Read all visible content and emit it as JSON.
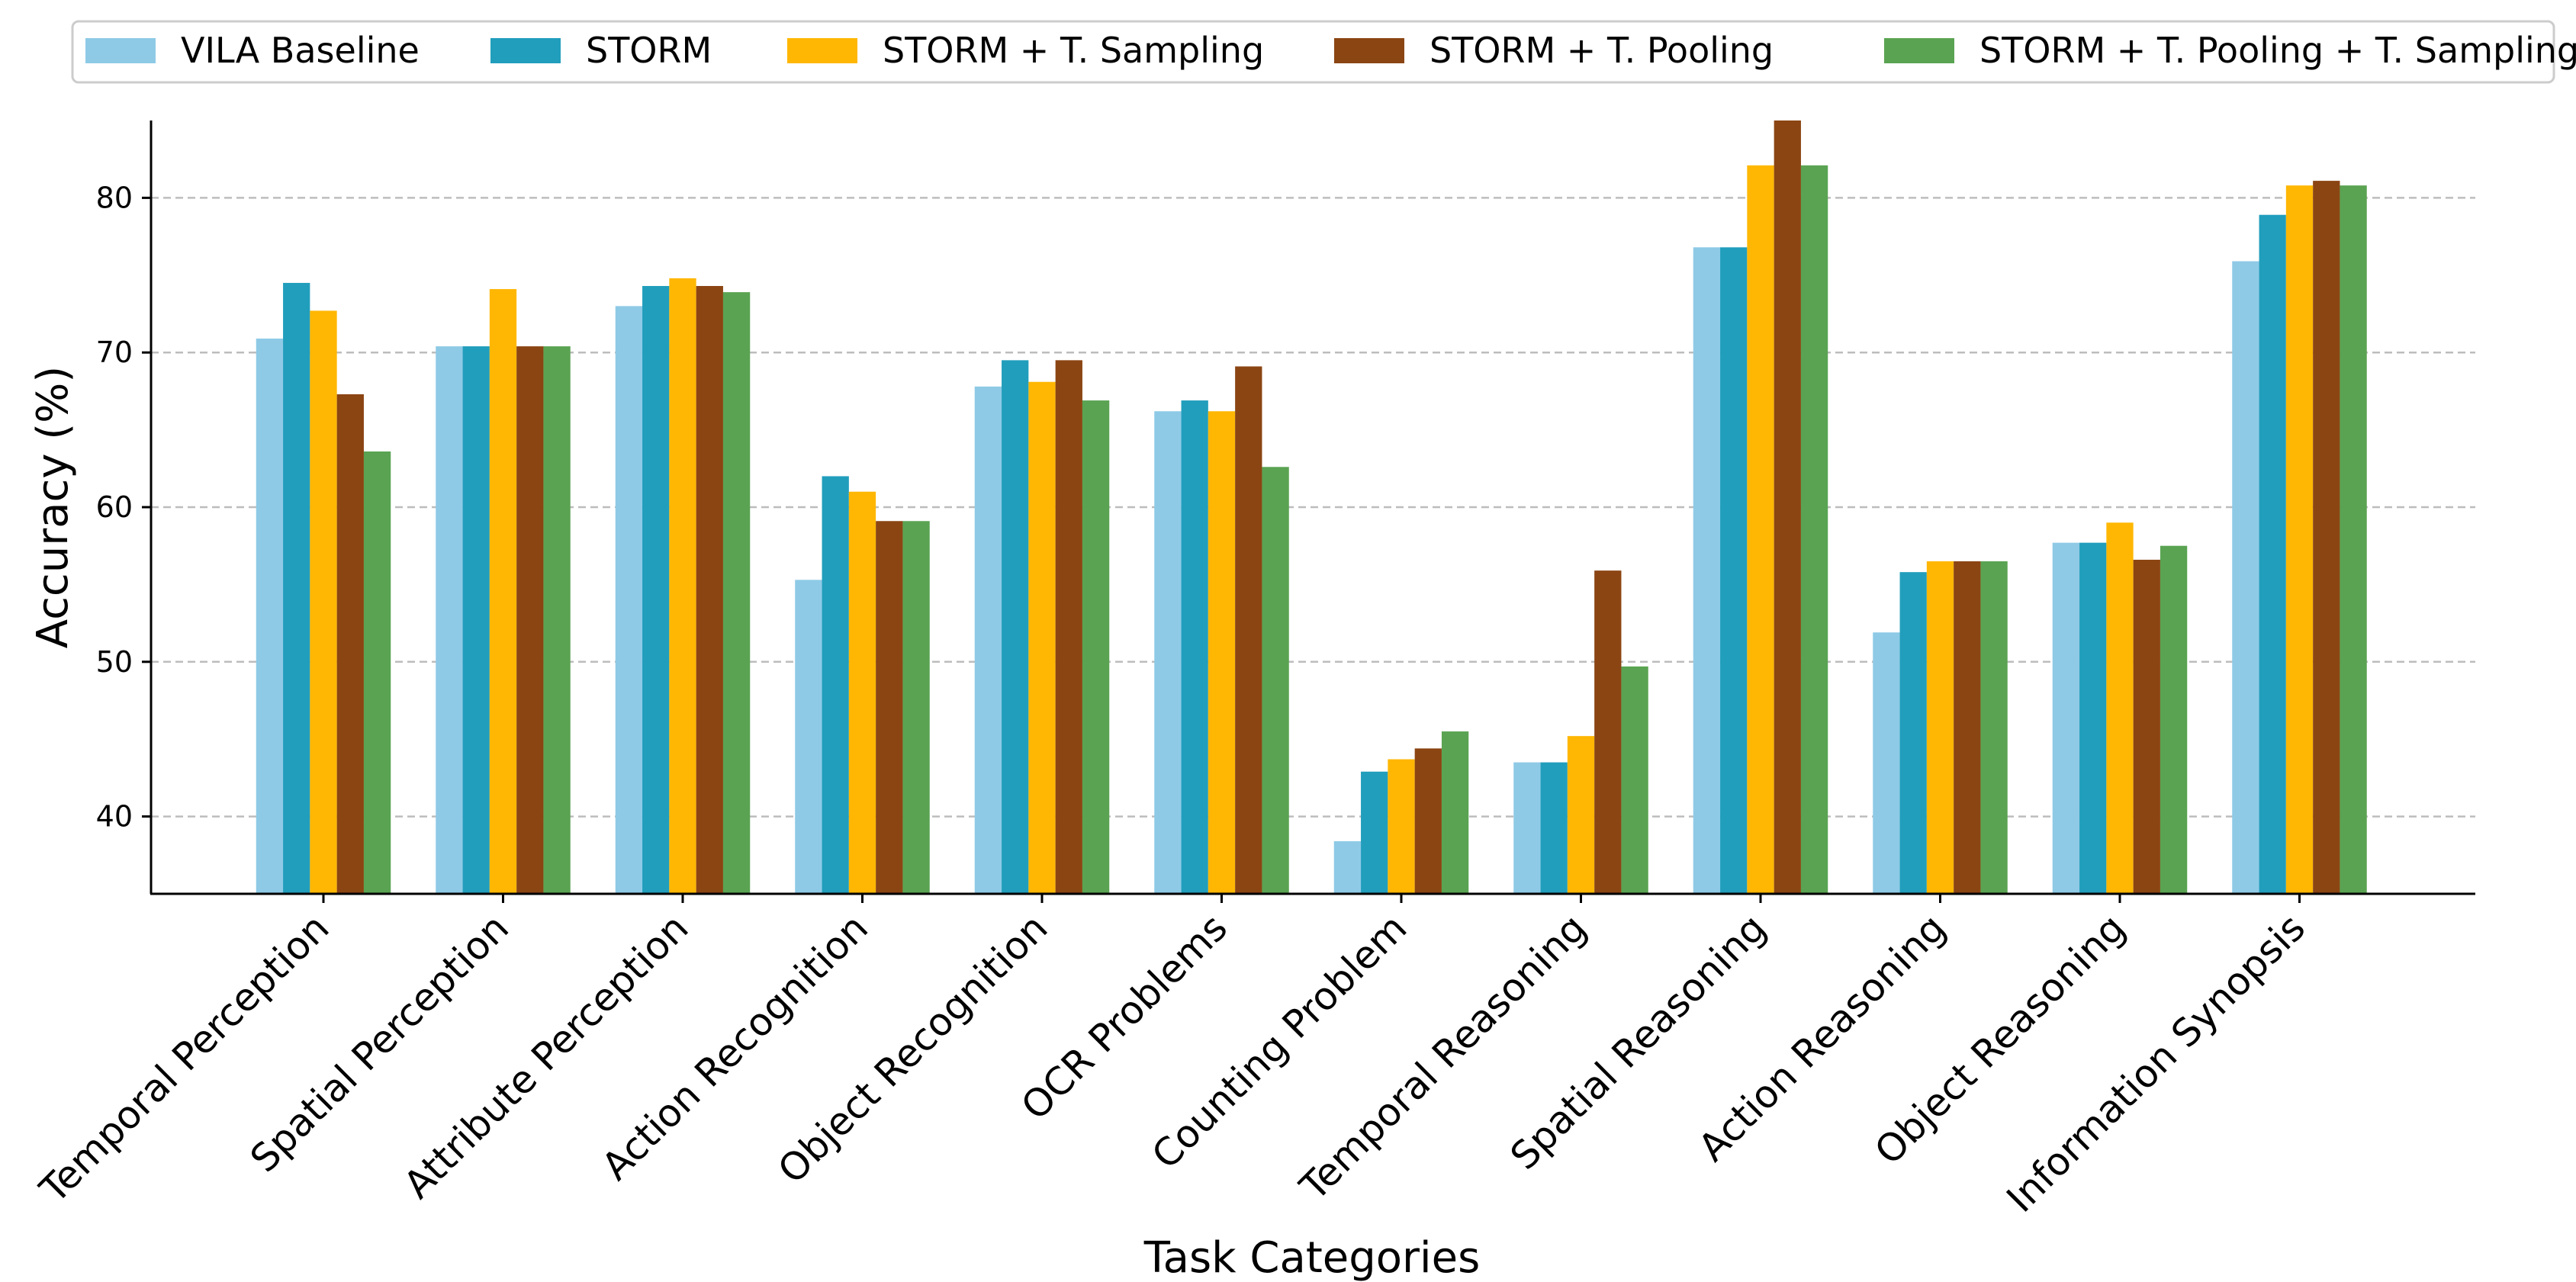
{
  "chart_data": {
    "type": "bar",
    "title": "",
    "xlabel": "Task Categories",
    "ylabel": "Accuracy (%)",
    "ylim": [
      35,
      85
    ],
    "yticks": [
      40,
      50,
      60,
      70,
      80
    ],
    "grid": "y-dashed",
    "legend_position": "top",
    "categories": [
      "Temporal Perception",
      "Spatial Perception",
      "Attribute Perception",
      "Action Recognition",
      "Object Recognition",
      "OCR Problems",
      "Counting Problem",
      "Temporal Reasoning",
      "Spatial Reasoning",
      "Action Reasoning",
      "Object Reasoning",
      "Information Synopsis"
    ],
    "series": [
      {
        "name": "VILA Baseline",
        "color": "#8ecae6",
        "values": [
          70.9,
          70.4,
          73.0,
          55.3,
          67.8,
          66.2,
          38.4,
          43.5,
          76.8,
          51.9,
          57.7,
          75.9
        ]
      },
      {
        "name": "STORM",
        "color": "#219ebc",
        "values": [
          74.5,
          70.4,
          74.3,
          62.0,
          69.5,
          66.9,
          42.9,
          43.5,
          76.8,
          55.8,
          57.7,
          78.9
        ]
      },
      {
        "name": "STORM + T. Sampling",
        "color": "#ffb703",
        "values": [
          72.7,
          74.1,
          74.8,
          61.0,
          68.1,
          66.2,
          43.7,
          45.2,
          82.1,
          56.5,
          59.0,
          80.8
        ]
      },
      {
        "name": "STORM + T. Pooling",
        "color": "#8b4513",
        "values": [
          67.3,
          70.4,
          74.3,
          59.1,
          69.5,
          69.1,
          44.4,
          55.9,
          85.0,
          56.5,
          56.6,
          81.1
        ]
      },
      {
        "name": "STORM + T. Pooling + T. Sampling",
        "color": "#5aa352",
        "values": [
          63.6,
          70.4,
          73.9,
          59.1,
          66.9,
          62.6,
          45.5,
          49.7,
          82.1,
          56.5,
          57.5,
          80.8
        ]
      }
    ]
  }
}
